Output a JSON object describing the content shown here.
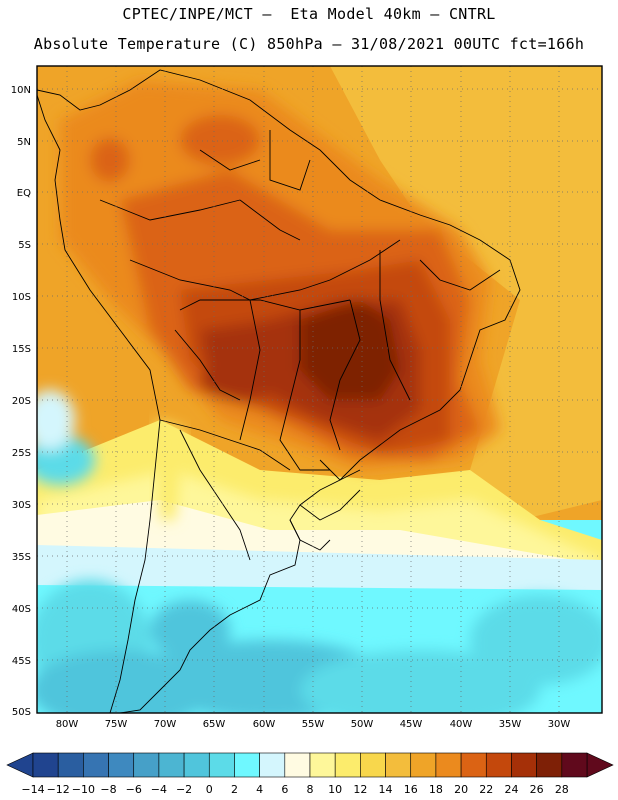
{
  "header": {
    "line1": "CPTEC/INPE/MCT –  Eta Model 40km – CNTRL",
    "line2": "Absolute Temperature (C) 850hPa – 31/08/2021 00UTC fct=166h"
  },
  "map": {
    "lat_labels": [
      "10N",
      "5N",
      "EQ",
      "5S",
      "10S",
      "15S",
      "20S",
      "25S",
      "30S",
      "35S",
      "40S",
      "45S",
      "50S"
    ],
    "lon_labels": [
      "80W",
      "75W",
      "70W",
      "65W",
      "60W",
      "55W",
      "50W",
      "45W",
      "40W",
      "35W",
      "30W"
    ]
  },
  "colorbar": {
    "labels": [
      "-14",
      "-12",
      "-10",
      "-8",
      "-6",
      "-4",
      "-2",
      "0",
      "2",
      "4",
      "6",
      "8",
      "10",
      "12",
      "14",
      "16",
      "18",
      "20",
      "22",
      "24",
      "26",
      "28"
    ],
    "colors": [
      "#20448f",
      "#2a5ea0",
      "#3674b2",
      "#3e89bf",
      "#46a0c8",
      "#4cb5d2",
      "#50c5dc",
      "#5cdbe8",
      "#6ff8ff",
      "#d4f6fd",
      "#fffbe2",
      "#fef79a",
      "#fcec6c",
      "#f8d74c",
      "#f3bd3c",
      "#efa428",
      "#eb8a1e",
      "#db6314",
      "#c4480c",
      "#a53008",
      "#7e2006",
      "#60091c"
    ]
  }
}
